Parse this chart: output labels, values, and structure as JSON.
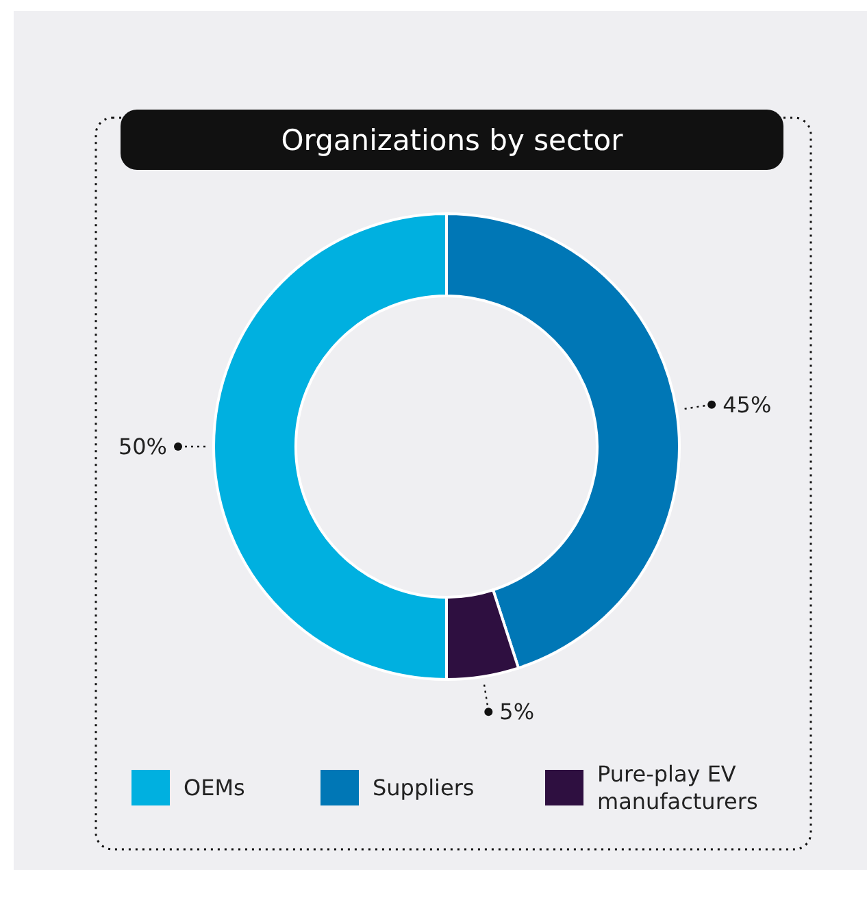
{
  "chart_data": {
    "type": "donut",
    "title": "Organizations by sector",
    "categories": [
      "OEMs",
      "Suppliers",
      "Pure-play EV manufacturers"
    ],
    "values": [
      50,
      45,
      5
    ],
    "colors": [
      "#00b0e0",
      "#0077b6",
      "#2e0f40"
    ],
    "value_labels": [
      "50%",
      "45%",
      "5%"
    ],
    "legend": "bottom"
  }
}
